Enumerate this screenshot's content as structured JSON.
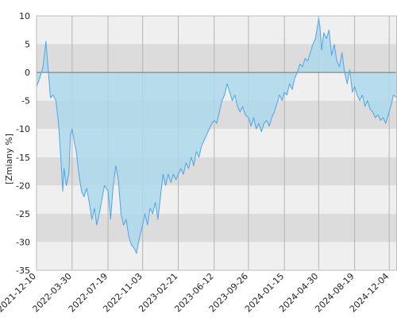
{
  "chart_data": {
    "type": "area",
    "title": "",
    "xlabel": "",
    "ylabel": "[Zmiany %]",
    "ylim": [
      -35,
      10
    ],
    "xlim": [
      "2021-12-10",
      "2024-12-28"
    ],
    "yticks": [
      10,
      5,
      0,
      -5,
      -10,
      -15,
      -20,
      -25,
      -30,
      -35
    ],
    "xticks": [
      "2021-12-10",
      "2022-03-30",
      "2022-07-19",
      "2022-11-03",
      "2023-02-21",
      "2023-06-12",
      "2023-09-26",
      "2024-01-15",
      "2024-04-30",
      "2024-08-19",
      "2024-12-04"
    ],
    "grid": true,
    "legend": "none",
    "colors": {
      "line": "#4da6e8",
      "area": "#add8ea",
      "band_light": "#efefef",
      "band_dark": "#dcdcdc",
      "gridline": "#b4b4b4",
      "zero_line": "#707070"
    },
    "series": [
      {
        "values": [
          [
            "2021-12-10",
            -2.5
          ],
          [
            "2021-12-20",
            -1.0
          ],
          [
            "2021-12-30",
            1.0
          ],
          [
            "2022-01-08",
            5.5
          ],
          [
            "2022-01-15",
            0.5
          ],
          [
            "2022-01-22",
            -4.5
          ],
          [
            "2022-01-30",
            -4.0
          ],
          [
            "2022-02-08",
            -5.0
          ],
          [
            "2022-02-16",
            -9.0
          ],
          [
            "2022-02-24",
            -16.0
          ],
          [
            "2022-03-01",
            -21.0
          ],
          [
            "2022-03-05",
            -17.0
          ],
          [
            "2022-03-12",
            -20.0
          ],
          [
            "2022-03-20",
            -18.0
          ],
          [
            "2022-03-25",
            -11.0
          ],
          [
            "2022-03-30",
            -10.0
          ],
          [
            "2022-04-05",
            -12.0
          ],
          [
            "2022-04-12",
            -14.0
          ],
          [
            "2022-04-20",
            -18.0
          ],
          [
            "2022-04-28",
            -21.0
          ],
          [
            "2022-05-06",
            -22.0
          ],
          [
            "2022-05-14",
            -20.5
          ],
          [
            "2022-05-22",
            -23.0
          ],
          [
            "2022-05-30",
            -26.0
          ],
          [
            "2022-06-07",
            -24.0
          ],
          [
            "2022-06-14",
            -27.0
          ],
          [
            "2022-06-22",
            -25.0
          ],
          [
            "2022-06-30",
            -22.5
          ],
          [
            "2022-07-08",
            -20.0
          ],
          [
            "2022-07-19",
            -21.0
          ],
          [
            "2022-07-27",
            -26.0
          ],
          [
            "2022-08-04",
            -20.0
          ],
          [
            "2022-08-12",
            -16.5
          ],
          [
            "2022-08-20",
            -19.0
          ],
          [
            "2022-08-28",
            -25.0
          ],
          [
            "2022-09-05",
            -27.0
          ],
          [
            "2022-09-13",
            -26.0
          ],
          [
            "2022-09-21",
            -29.0
          ],
          [
            "2022-09-29",
            -30.5
          ],
          [
            "2022-10-07",
            -31.0
          ],
          [
            "2022-10-15",
            -32.0
          ],
          [
            "2022-10-23",
            -29.5
          ],
          [
            "2022-11-03",
            -27.0
          ],
          [
            "2022-11-10",
            -25.0
          ],
          [
            "2022-11-18",
            -27.0
          ],
          [
            "2022-11-26",
            -24.0
          ],
          [
            "2022-12-04",
            -25.0
          ],
          [
            "2022-12-12",
            -23.0
          ],
          [
            "2022-12-20",
            -26.0
          ],
          [
            "2022-12-28",
            -22.0
          ],
          [
            "2023-01-05",
            -18.0
          ],
          [
            "2023-01-13",
            -20.0
          ],
          [
            "2023-01-21",
            -18.0
          ],
          [
            "2023-01-29",
            -19.5
          ],
          [
            "2023-02-06",
            -18.0
          ],
          [
            "2023-02-14",
            -19.0
          ],
          [
            "2023-02-21",
            -18.0
          ],
          [
            "2023-03-01",
            -17.0
          ],
          [
            "2023-03-09",
            -18.0
          ],
          [
            "2023-03-17",
            -16.0
          ],
          [
            "2023-03-25",
            -17.0
          ],
          [
            "2023-04-02",
            -15.0
          ],
          [
            "2023-04-10",
            -16.5
          ],
          [
            "2023-04-18",
            -14.0
          ],
          [
            "2023-04-26",
            -15.0
          ],
          [
            "2023-05-04",
            -13.0
          ],
          [
            "2023-05-12",
            -12.0
          ],
          [
            "2023-05-20",
            -11.0
          ],
          [
            "2023-05-28",
            -10.0
          ],
          [
            "2023-06-05",
            -9.0
          ],
          [
            "2023-06-12",
            -8.5
          ],
          [
            "2023-06-20",
            -9.0
          ],
          [
            "2023-06-28",
            -7.0
          ],
          [
            "2023-07-06",
            -5.0
          ],
          [
            "2023-07-14",
            -4.0
          ],
          [
            "2023-07-22",
            -2.0
          ],
          [
            "2023-07-30",
            -3.5
          ],
          [
            "2023-08-07",
            -5.0
          ],
          [
            "2023-08-15",
            -4.0
          ],
          [
            "2023-08-23",
            -6.0
          ],
          [
            "2023-08-31",
            -7.0
          ],
          [
            "2023-09-08",
            -6.0
          ],
          [
            "2023-09-16",
            -7.5
          ],
          [
            "2023-09-26",
            -8.0
          ],
          [
            "2023-10-04",
            -9.5
          ],
          [
            "2023-10-12",
            -8.0
          ],
          [
            "2023-10-20",
            -10.0
          ],
          [
            "2023-10-28",
            -9.0
          ],
          [
            "2023-11-05",
            -10.5
          ],
          [
            "2023-11-13",
            -9.0
          ],
          [
            "2023-11-21",
            -8.5
          ],
          [
            "2023-11-29",
            -9.5
          ],
          [
            "2023-12-07",
            -8.0
          ],
          [
            "2023-12-15",
            -7.0
          ],
          [
            "2023-12-23",
            -5.5
          ],
          [
            "2023-12-31",
            -4.0
          ],
          [
            "2024-01-08",
            -5.0
          ],
          [
            "2024-01-15",
            -3.5
          ],
          [
            "2024-01-23",
            -4.0
          ],
          [
            "2024-01-31",
            -2.0
          ],
          [
            "2024-02-08",
            -3.0
          ],
          [
            "2024-02-16",
            -1.0
          ],
          [
            "2024-02-24",
            0.0
          ],
          [
            "2024-03-03",
            1.5
          ],
          [
            "2024-03-11",
            1.0
          ],
          [
            "2024-03-19",
            2.5
          ],
          [
            "2024-03-27",
            2.0
          ],
          [
            "2024-04-04",
            3.5
          ],
          [
            "2024-04-12",
            5.0
          ],
          [
            "2024-04-20",
            6.0
          ],
          [
            "2024-04-30",
            9.5
          ],
          [
            "2024-05-04",
            8.0
          ],
          [
            "2024-05-09",
            4.0
          ],
          [
            "2024-05-16",
            7.0
          ],
          [
            "2024-05-24",
            6.0
          ],
          [
            "2024-06-01",
            7.5
          ],
          [
            "2024-06-09",
            3.0
          ],
          [
            "2024-06-17",
            5.0
          ],
          [
            "2024-06-25",
            2.0
          ],
          [
            "2024-07-03",
            1.0
          ],
          [
            "2024-07-11",
            3.5
          ],
          [
            "2024-07-19",
            0.0
          ],
          [
            "2024-07-27",
            -2.0
          ],
          [
            "2024-08-04",
            0.5
          ],
          [
            "2024-08-12",
            -3.5
          ],
          [
            "2024-08-19",
            -2.5
          ],
          [
            "2024-08-27",
            -4.0
          ],
          [
            "2024-09-04",
            -5.0
          ],
          [
            "2024-09-12",
            -4.0
          ],
          [
            "2024-09-20",
            -6.0
          ],
          [
            "2024-09-28",
            -5.0
          ],
          [
            "2024-10-06",
            -6.5
          ],
          [
            "2024-10-14",
            -7.0
          ],
          [
            "2024-10-22",
            -8.0
          ],
          [
            "2024-10-30",
            -7.5
          ],
          [
            "2024-11-07",
            -8.5
          ],
          [
            "2024-11-15",
            -8.0
          ],
          [
            "2024-11-23",
            -9.0
          ],
          [
            "2024-12-01",
            -7.5
          ],
          [
            "2024-12-09",
            -6.0
          ],
          [
            "2024-12-17",
            -4.0
          ],
          [
            "2024-12-28",
            -4.5
          ]
        ]
      }
    ]
  }
}
